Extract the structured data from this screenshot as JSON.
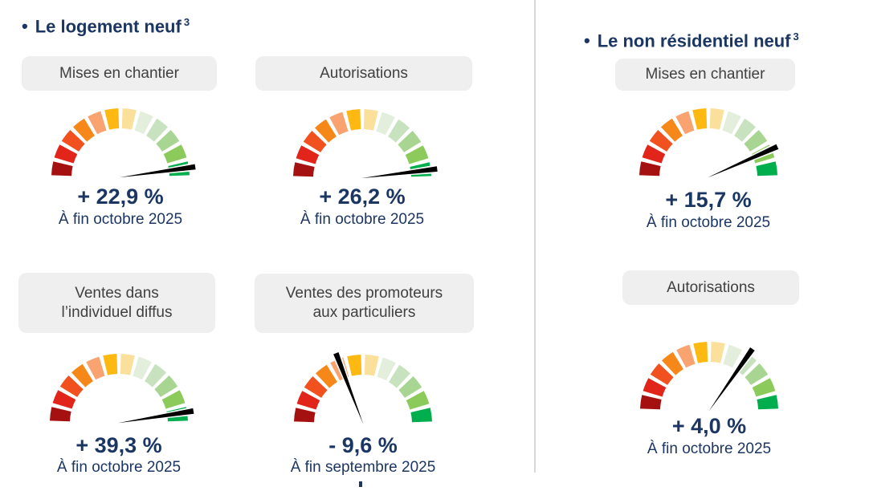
{
  "colors": {
    "navy": "#1C3664",
    "pill_bg": "#EFEFEF",
    "pill_text": "#404040",
    "divider": "#D9D9D9",
    "needle": "#000000",
    "needle_outline": "#FFFFFF",
    "segments": [
      "#A51110",
      "#E1251B",
      "#F0511F",
      "#F6881A",
      "#F9A371",
      "#FDB812",
      "#FBE09C",
      "#E3EFDC",
      "#C8E2C0",
      "#A9D593",
      "#8CCB5B",
      "#00AE4E"
    ]
  },
  "sections": [
    {
      "bullet": "•",
      "title": "Le logement neuf",
      "title_superscript": "3",
      "gauges": [
        {
          "label": "Mises en chantier",
          "label_lines": [
            "Mises en chantier"
          ],
          "value": "+ 22,9 %",
          "period": "À fin octobre 2025",
          "needle_angle_deg": 8
        },
        {
          "label": "Autorisations",
          "label_lines": [
            "Autorisations"
          ],
          "value": "+ 26,2 %",
          "period": "À fin octobre 2025",
          "needle_angle_deg": 7
        },
        {
          "label": "Ventes dans l’individuel diffus",
          "label_lines": [
            "Ventes dans",
            "l’individuel diffus"
          ],
          "value": "+ 39,3 %",
          "period": "À fin octobre 2025",
          "needle_angle_deg": 9
        },
        {
          "label": "Ventes des promoteurs aux particuliers",
          "label_lines": [
            "Ventes des promoteurs",
            "aux particuliers"
          ],
          "value": "- 9,6 %",
          "period": "À fin septembre 2025",
          "needle_angle_deg": 111
        }
      ]
    },
    {
      "bullet": "•",
      "title": "Le non résidentiel neuf",
      "title_superscript": "3",
      "gauges": [
        {
          "label": "Mises en chantier",
          "label_lines": [
            "Mises en chantier"
          ],
          "value": "+ 15,7 %",
          "period": "À fin octobre 2025",
          "needle_angle_deg": 24
        },
        {
          "label": "Autorisations",
          "label_lines": [
            "Autorisations"
          ],
          "value": "+ 4,0 %",
          "period": "À fin octobre 2025",
          "needle_angle_deg": 55
        }
      ]
    }
  ],
  "chart_data": [
    {
      "type": "gauge",
      "section": "Le logement neuf",
      "title": "Mises en chantier",
      "value_pct": 22.9,
      "value_label": "+ 22,9 %",
      "period": "À fin octobre 2025",
      "needle_angle_deg": 8,
      "scale_note": "semicircular 12-segment color scale, dark red (left/negative) to dark green (right/positive), needle near green end"
    },
    {
      "type": "gauge",
      "section": "Le logement neuf",
      "title": "Autorisations",
      "value_pct": 26.2,
      "value_label": "+ 26,2 %",
      "period": "À fin octobre 2025",
      "needle_angle_deg": 7,
      "scale_note": "needle at far green end"
    },
    {
      "type": "gauge",
      "section": "Le logement neuf",
      "title": "Ventes dans l’individuel diffus",
      "value_pct": 39.3,
      "value_label": "+ 39,3 %",
      "period": "À fin octobre 2025",
      "needle_angle_deg": 9,
      "scale_note": "needle at far green end"
    },
    {
      "type": "gauge",
      "section": "Le logement neuf",
      "title": "Ventes des promoteurs aux particuliers",
      "value_pct": -9.6,
      "value_label": "- 9,6 %",
      "period": "À fin septembre 2025",
      "needle_angle_deg": 111,
      "scale_note": "needle tilted left of vertical into orange zone"
    },
    {
      "type": "gauge",
      "section": "Le non résidentiel neuf",
      "title": "Mises en chantier",
      "value_pct": 15.7,
      "value_label": "+ 15,7 %",
      "period": "À fin octobre 2025",
      "needle_angle_deg": 24,
      "scale_note": "needle in light-green zone"
    },
    {
      "type": "gauge",
      "section": "Le non résidentiel neuf",
      "title": "Autorisations",
      "value_pct": 4.0,
      "value_label": "+ 4,0 %",
      "period": "À fin octobre 2025",
      "needle_angle_deg": 55,
      "scale_note": "needle just right of vertical, palest-green zone"
    }
  ]
}
